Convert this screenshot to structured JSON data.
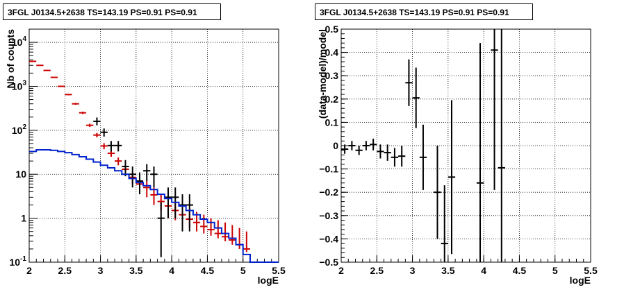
{
  "chart_data": [
    {
      "type": "histogram",
      "title": "3FGL J0134.5+2638 TS=143.19 PS=0.91 PS=0.91",
      "xlabel": "logE",
      "ylabel": "Nb of counts",
      "xlim": [
        2,
        5.5
      ],
      "ylim": [
        0.1,
        20000
      ],
      "yscale": "log",
      "grid": true,
      "xticks": [
        "2",
        "2.5",
        "3",
        "3.5",
        "4",
        "4.5",
        "5",
        "5.5"
      ],
      "yticks": [
        "10^-1",
        "1",
        "10",
        "10^2",
        "10^3",
        "10^4"
      ],
      "bin_width": 0.1,
      "series": [
        {
          "color": "#cc0000",
          "style": "errorbar",
          "x": [
            2.05,
            2.15,
            2.25,
            2.35,
            2.45,
            2.55,
            2.65,
            2.75,
            2.85,
            2.95,
            3.05,
            3.15,
            3.25,
            3.35,
            3.45,
            3.55,
            3.65,
            3.75,
            3.85,
            3.95,
            4.05,
            4.15,
            4.25,
            4.35,
            4.45,
            4.55,
            4.65,
            4.75,
            4.85,
            4.95,
            5.05
          ],
          "y": [
            3700,
            3000,
            2300,
            1600,
            1000,
            650,
            400,
            250,
            130,
            78,
            44,
            30,
            20,
            13,
            8.5,
            6,
            5,
            3.4,
            2.4,
            1.9,
            1.5,
            1.2,
            0.95,
            0.8,
            0.65,
            0.55,
            0.45,
            0.38,
            0.32,
            0.25,
            0.2
          ],
          "yerr_low": [
            3640,
            2945,
            2252,
            1560,
            968,
            625,
            380,
            234,
            119,
            69,
            37,
            25,
            16,
            10,
            6,
            4,
            3,
            2,
            1.5,
            1.1,
            0.9,
            0.7,
            0.6,
            0.5,
            0.45,
            0.4,
            0.35,
            0.3,
            0.25,
            0.2,
            0.17
          ],
          "yerr_high": [
            3760,
            3055,
            2348,
            1640,
            1032,
            675,
            420,
            266,
            141,
            87,
            51,
            35,
            24,
            16,
            11,
            8,
            7,
            5,
            3.5,
            2.8,
            2.3,
            1.9,
            1.6,
            1.4,
            1.2,
            1.0,
            0.9,
            0.8,
            0.7,
            0.6,
            0.5
          ]
        },
        {
          "color": "#000000",
          "style": "errorbar",
          "x": [
            2.95,
            3.05,
            3.15,
            3.25,
            3.35,
            3.45,
            3.55,
            3.65,
            3.75,
            3.85,
            3.95,
            4.05,
            4.15,
            4.25
          ],
          "y": [
            160,
            90,
            45,
            45,
            15,
            10,
            7,
            12,
            10,
            1,
            3,
            3,
            2,
            2
          ],
          "yerr_low": [
            130,
            72,
            33,
            33,
            9,
            5,
            3.5,
            7,
            5,
            0.13,
            1,
            1,
            0.5,
            0.5
          ],
          "yerr_high": [
            195,
            110,
            57,
            57,
            21,
            15,
            11,
            17,
            15,
            2.3,
            5,
            5,
            3.5,
            3.5
          ]
        },
        {
          "color": "#0022cc",
          "style": "step",
          "x": [
            2.05,
            2.15,
            2.25,
            2.35,
            2.45,
            2.55,
            2.65,
            2.75,
            2.85,
            2.95,
            3.05,
            3.15,
            3.25,
            3.35,
            3.45,
            3.55,
            3.65,
            3.75,
            3.85,
            3.95,
            4.05,
            4.15,
            4.25,
            4.35,
            4.45,
            4.55,
            4.65,
            4.75,
            4.85,
            4.95,
            5.05,
            5.15,
            5.25,
            5.35,
            5.45
          ],
          "y": [
            33,
            36,
            36,
            35,
            33,
            31,
            28,
            25,
            22,
            19,
            16,
            14,
            12,
            10,
            8,
            6.5,
            5.5,
            4.5,
            3.5,
            2.8,
            2.3,
            1.9,
            1.5,
            1.2,
            0.95,
            0.8,
            0.6,
            0.45,
            0.35,
            0.25,
            0.15,
            0.1,
            0.1,
            0.1,
            0.1
          ]
        }
      ]
    },
    {
      "type": "scatter",
      "title": "3FGL J0134.5+2638 TS=143.19 PS=0.91 PS=0.91",
      "xlabel": "logE",
      "ylabel": "(data-model)/model",
      "xlim": [
        2,
        5.5
      ],
      "ylim": [
        -0.5,
        0.5
      ],
      "grid": true,
      "xticks": [
        "2",
        "2.5",
        "3",
        "3.5",
        "4",
        "4.5",
        "5",
        "5.5"
      ],
      "yticks": [
        "-0.5",
        "-0.4",
        "-0.3",
        "-0.2",
        "-0.1",
        "0",
        "0.1",
        "0.2",
        "0.3",
        "0.4",
        "0.5"
      ],
      "series": [
        {
          "color": "#000000",
          "style": "errorbar",
          "x": [
            2.05,
            2.15,
            2.25,
            2.35,
            2.45,
            2.55,
            2.65,
            2.75,
            2.85,
            2.95,
            3.05,
            3.15,
            3.35,
            3.45,
            3.55,
            3.95,
            4.15,
            4.25
          ],
          "y": [
            -0.015,
            0.0,
            -0.02,
            0.0,
            0.005,
            -0.025,
            -0.03,
            -0.05,
            -0.045,
            0.27,
            0.205,
            -0.05,
            -0.2,
            -0.42,
            -0.135,
            -0.16,
            0.41,
            -0.095
          ],
          "yerr": [
            0.02,
            0.02,
            0.02,
            0.02,
            0.025,
            0.03,
            0.035,
            0.04,
            0.045,
            0.1,
            0.13,
            0.14,
            0.2,
            0.25,
            0.33,
            0.6,
            0.6,
            0.6
          ]
        }
      ]
    }
  ]
}
